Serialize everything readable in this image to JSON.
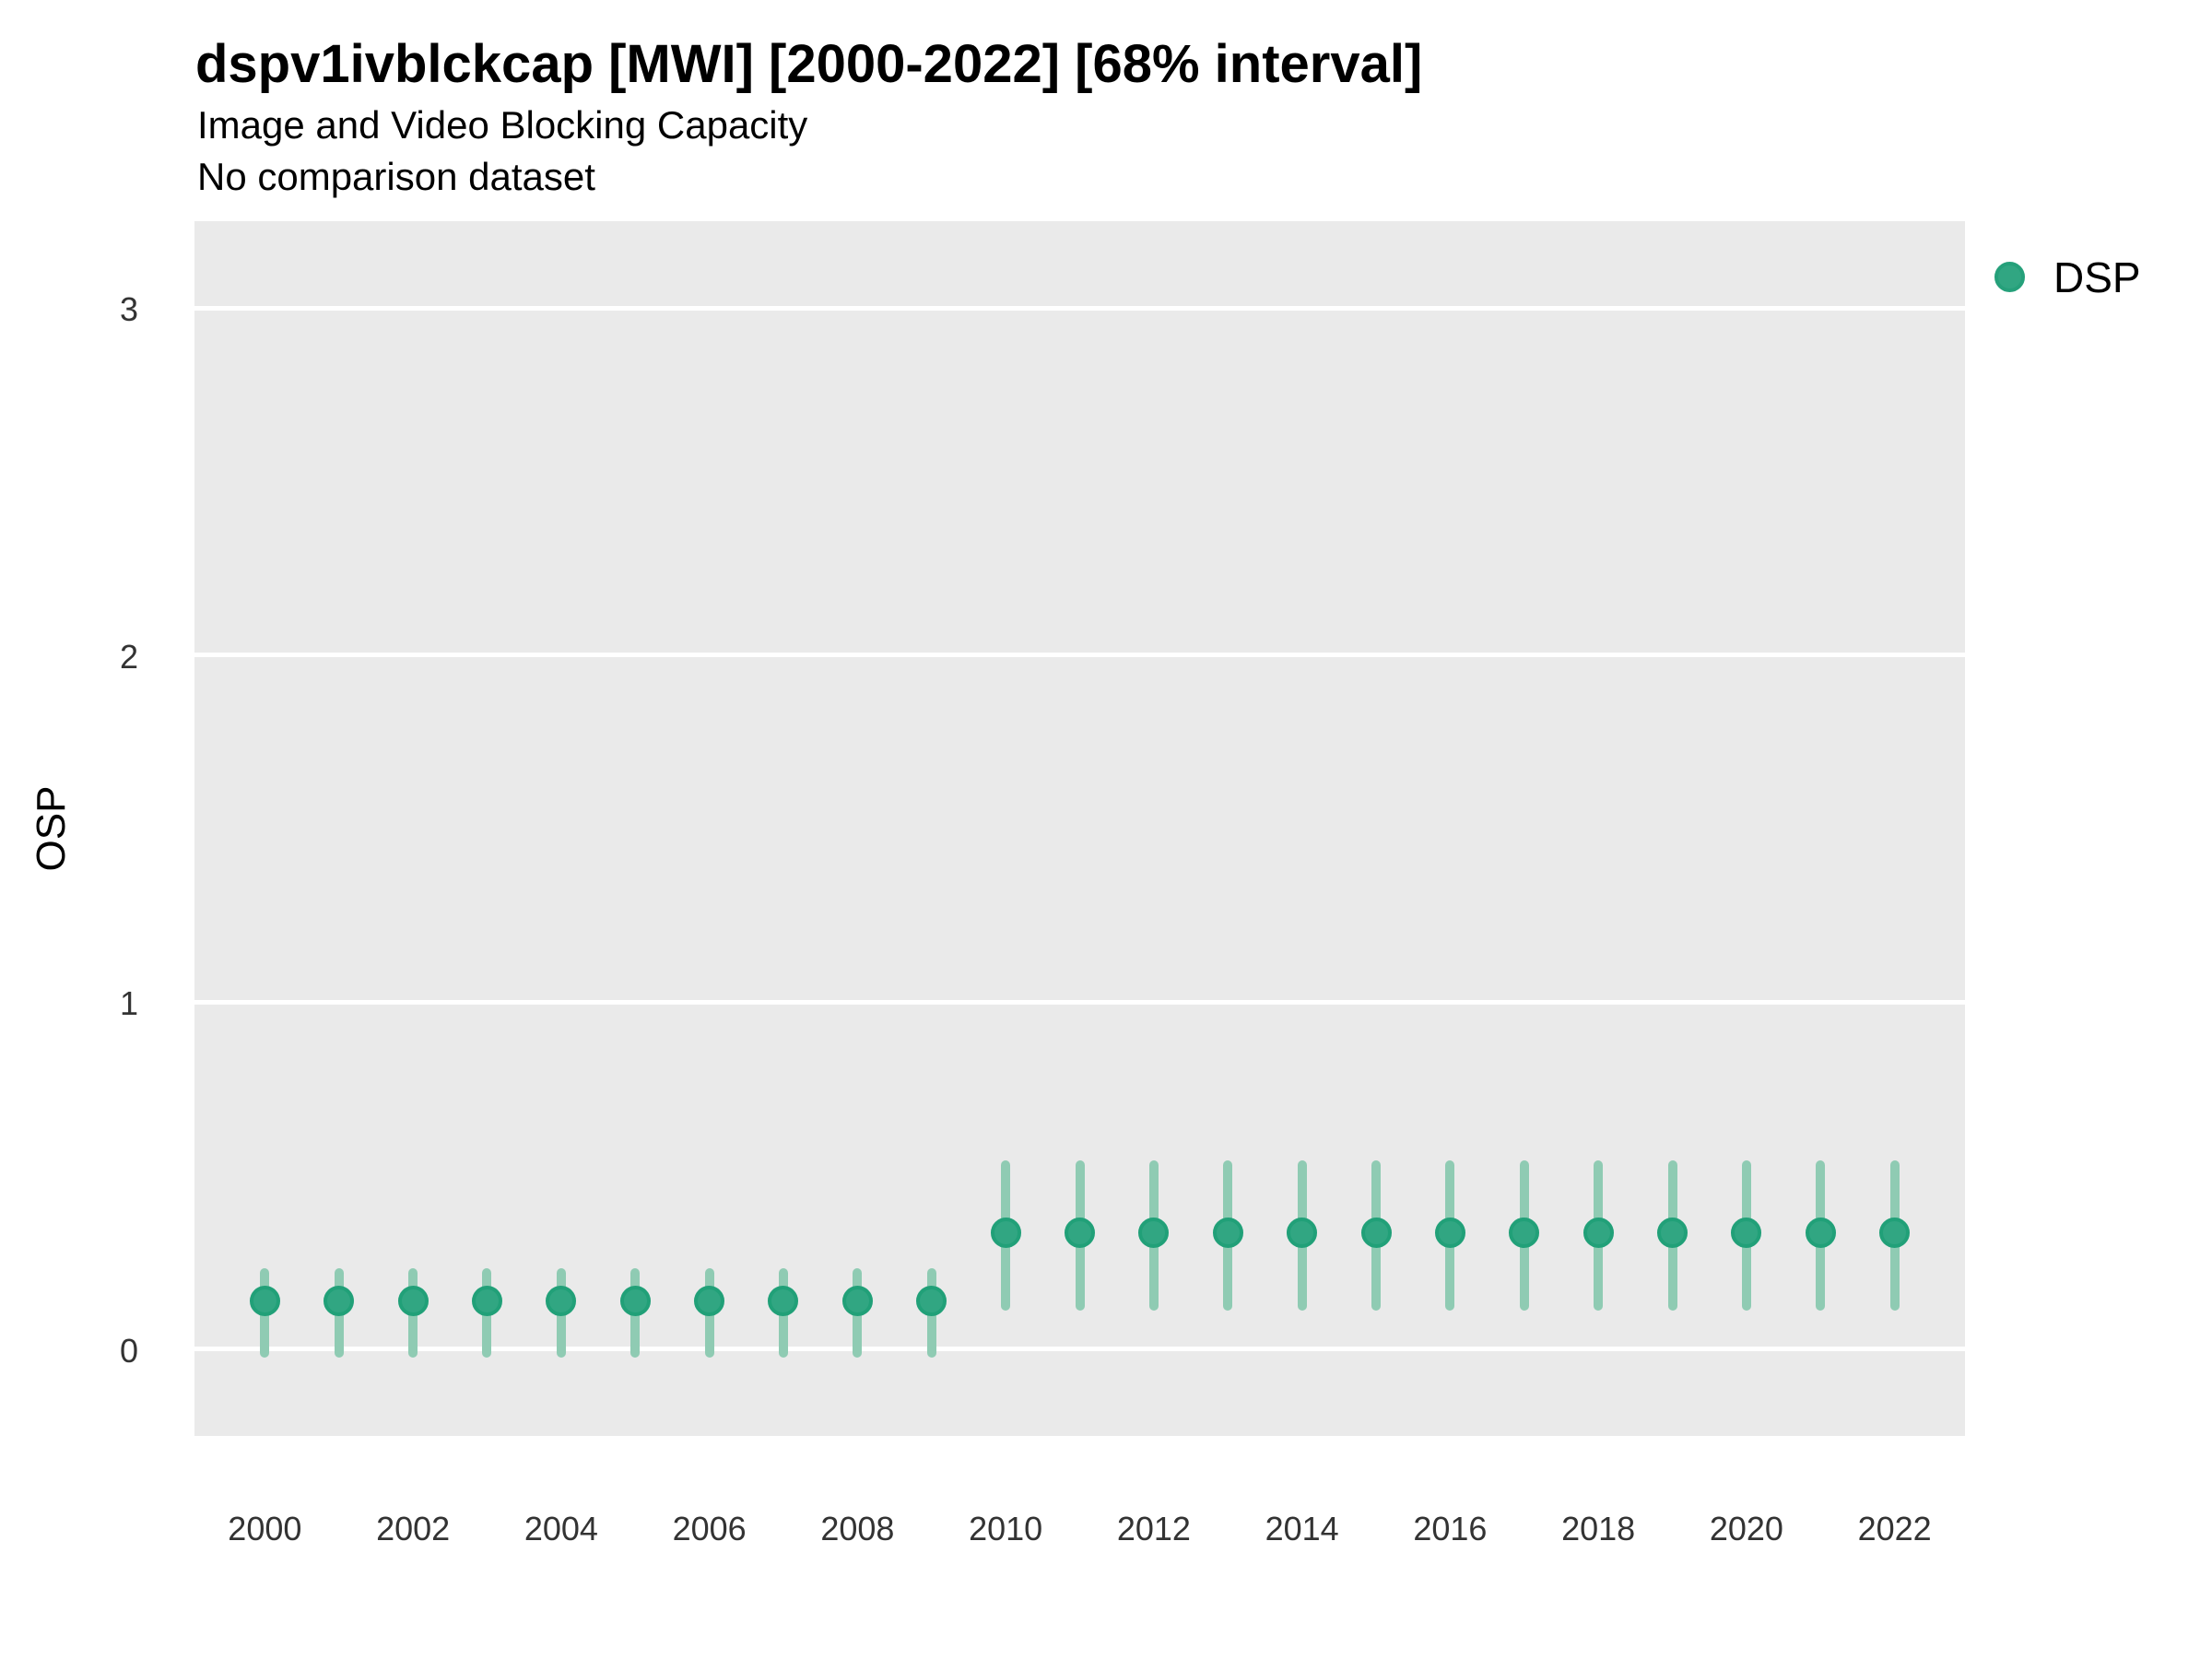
{
  "header": {
    "title": "dspv1ivblckcap [MWI] [2000-2022] [68% interval]",
    "subtitle": "Image and Video Blocking Capacity",
    "note": "No comparison dataset"
  },
  "legend": {
    "position": "right",
    "items": [
      {
        "label": "DSP",
        "color": "#31A682"
      }
    ]
  },
  "colors": {
    "point_fill": "#31A682",
    "point_ring": "#21A078",
    "interval_bar": "#8FCBB3",
    "panel_background": "#EAEAEA",
    "gridline": "#FFFFFF"
  },
  "chart_data": {
    "type": "scatter",
    "title": "dspv1ivblckcap [MWI] [2000-2022] [68% interval]",
    "subtitle": "Image and Video Blocking Capacity",
    "xlabel": "",
    "ylabel": "OSP",
    "interval": "68%",
    "grid": "horizontal-major-only",
    "legend_position": "right",
    "xlim": [
      1999.05,
      2022.95
    ],
    "ylim": [
      -0.25,
      3.25
    ],
    "x_ticks": [
      2000,
      2002,
      2004,
      2006,
      2008,
      2010,
      2012,
      2014,
      2016,
      2018,
      2020,
      2022
    ],
    "y_ticks": [
      0,
      1,
      2,
      3
    ],
    "series": [
      {
        "name": "DSP",
        "points": [
          {
            "x": 2000,
            "y": 0.14,
            "lo": -0.01,
            "hi": 0.22
          },
          {
            "x": 2001,
            "y": 0.14,
            "lo": -0.01,
            "hi": 0.22
          },
          {
            "x": 2002,
            "y": 0.14,
            "lo": -0.01,
            "hi": 0.22
          },
          {
            "x": 2003,
            "y": 0.14,
            "lo": -0.01,
            "hi": 0.22
          },
          {
            "x": 2004,
            "y": 0.14,
            "lo": -0.01,
            "hi": 0.22
          },
          {
            "x": 2005,
            "y": 0.14,
            "lo": -0.01,
            "hi": 0.22
          },
          {
            "x": 2006,
            "y": 0.14,
            "lo": -0.01,
            "hi": 0.22
          },
          {
            "x": 2007,
            "y": 0.14,
            "lo": -0.01,
            "hi": 0.22
          },
          {
            "x": 2008,
            "y": 0.14,
            "lo": -0.01,
            "hi": 0.22
          },
          {
            "x": 2009,
            "y": 0.14,
            "lo": -0.01,
            "hi": 0.22
          },
          {
            "x": 2010,
            "y": 0.335,
            "lo": 0.125,
            "hi": 0.53
          },
          {
            "x": 2011,
            "y": 0.335,
            "lo": 0.125,
            "hi": 0.53
          },
          {
            "x": 2012,
            "y": 0.335,
            "lo": 0.125,
            "hi": 0.53
          },
          {
            "x": 2013,
            "y": 0.335,
            "lo": 0.125,
            "hi": 0.53
          },
          {
            "x": 2014,
            "y": 0.335,
            "lo": 0.125,
            "hi": 0.53
          },
          {
            "x": 2015,
            "y": 0.335,
            "lo": 0.125,
            "hi": 0.53
          },
          {
            "x": 2016,
            "y": 0.335,
            "lo": 0.125,
            "hi": 0.53
          },
          {
            "x": 2017,
            "y": 0.335,
            "lo": 0.125,
            "hi": 0.53
          },
          {
            "x": 2018,
            "y": 0.335,
            "lo": 0.125,
            "hi": 0.53
          },
          {
            "x": 2019,
            "y": 0.335,
            "lo": 0.125,
            "hi": 0.53
          },
          {
            "x": 2020,
            "y": 0.335,
            "lo": 0.125,
            "hi": 0.53
          },
          {
            "x": 2021,
            "y": 0.335,
            "lo": 0.125,
            "hi": 0.53
          },
          {
            "x": 2022,
            "y": 0.335,
            "lo": 0.125,
            "hi": 0.53
          }
        ]
      }
    ]
  }
}
